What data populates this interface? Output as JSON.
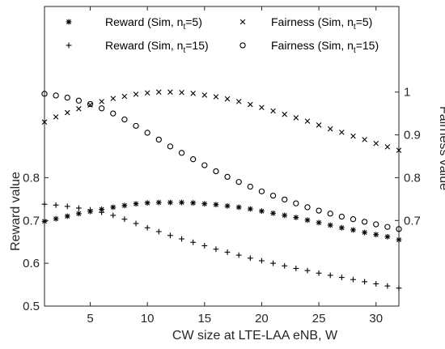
{
  "chart_data": {
    "type": "scatter",
    "x": [
      1,
      2,
      3,
      4,
      5,
      6,
      7,
      8,
      9,
      10,
      11,
      12,
      13,
      14,
      15,
      16,
      17,
      18,
      19,
      20,
      21,
      22,
      23,
      24,
      25,
      26,
      27,
      28,
      29,
      30,
      31,
      32
    ],
    "xlabel": "CW size at LTE-LAA eNB, W",
    "ylabel_left": "Reward value",
    "ylabel_right": "Fairness value",
    "xlim": [
      1,
      32
    ],
    "ylim_left": [
      0.5,
      1.2
    ],
    "ylim_right": [
      0.5,
      1.2
    ],
    "xticks": [
      5,
      10,
      15,
      20,
      25,
      30
    ],
    "yticks_left": [
      0.5,
      0.6,
      0.7,
      0.8
    ],
    "yticks_right": [
      0.7,
      0.8,
      0.9,
      1
    ],
    "grid": false,
    "legend_position": "top",
    "series": [
      {
        "label_main": "Reward (Sim, n",
        "label_sub": "t",
        "label_tail": "=5)",
        "marker": "asterisk",
        "axis": "left",
        "values": [
          0.698,
          0.704,
          0.71,
          0.716,
          0.721,
          0.726,
          0.731,
          0.735,
          0.739,
          0.741,
          0.742,
          0.742,
          0.742,
          0.741,
          0.739,
          0.737,
          0.734,
          0.731,
          0.727,
          0.722,
          0.717,
          0.712,
          0.707,
          0.701,
          0.695,
          0.689,
          0.683,
          0.678,
          0.672,
          0.667,
          0.662,
          0.655
        ]
      },
      {
        "label_main": "Reward (Sim, n",
        "label_sub": "t",
        "label_tail": "=15)",
        "marker": "plus",
        "axis": "left",
        "values": [
          0.738,
          0.736,
          0.733,
          0.729,
          0.725,
          0.719,
          0.712,
          0.703,
          0.693,
          0.683,
          0.674,
          0.665,
          0.657,
          0.649,
          0.641,
          0.633,
          0.626,
          0.619,
          0.612,
          0.606,
          0.6,
          0.594,
          0.588,
          0.583,
          0.577,
          0.572,
          0.567,
          0.562,
          0.557,
          0.552,
          0.547,
          0.542
        ]
      },
      {
        "label_main": "Fairness (Sim, n",
        "label_sub": "t",
        "label_tail": "=5)",
        "marker": "cross",
        "axis": "right",
        "values": [
          0.93,
          0.942,
          0.952,
          0.961,
          0.97,
          0.978,
          0.985,
          0.99,
          0.995,
          0.998,
          1.0,
          1.0,
          0.999,
          0.997,
          0.993,
          0.989,
          0.984,
          0.978,
          0.971,
          0.964,
          0.956,
          0.948,
          0.94,
          0.932,
          0.923,
          0.914,
          0.906,
          0.897,
          0.889,
          0.88,
          0.872,
          0.864
        ]
      },
      {
        "label_main": "Fairness (Sim, n",
        "label_sub": "t",
        "label_tail": "=15)",
        "marker": "circle",
        "axis": "right",
        "values": [
          0.996,
          0.992,
          0.987,
          0.98,
          0.972,
          0.962,
          0.95,
          0.936,
          0.921,
          0.905,
          0.889,
          0.873,
          0.858,
          0.843,
          0.829,
          0.815,
          0.802,
          0.79,
          0.779,
          0.768,
          0.758,
          0.749,
          0.74,
          0.731,
          0.723,
          0.716,
          0.709,
          0.703,
          0.697,
          0.691,
          0.685,
          0.68
        ]
      }
    ]
  }
}
